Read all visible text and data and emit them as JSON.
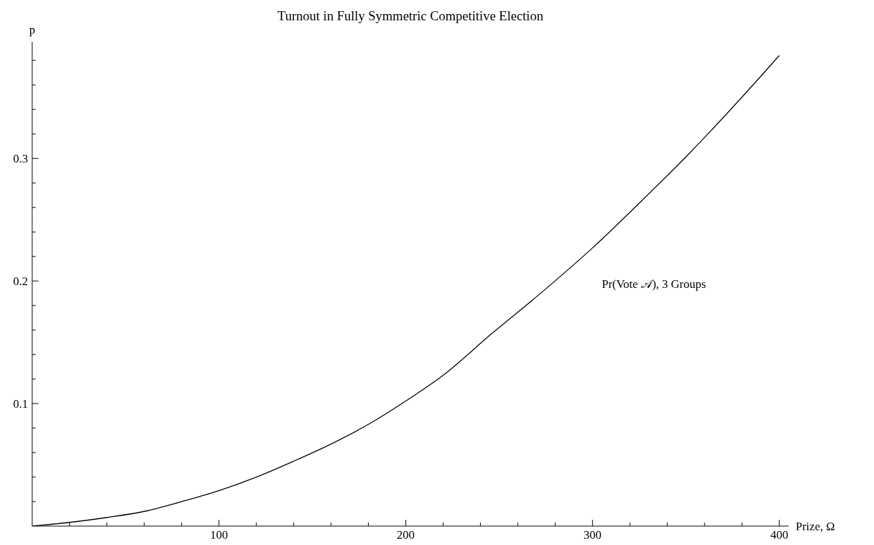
{
  "chart_data": {
    "type": "line",
    "title": "Turnout in Fully Symmetric Competitive Election",
    "xlabel": "Prize, Ω",
    "ylabel": "p",
    "x": [
      0,
      20,
      40,
      60,
      80,
      100,
      120,
      140,
      160,
      180,
      200,
      220,
      246,
      273,
      300,
      326,
      353,
      380,
      400
    ],
    "series": [
      {
        "name": "Pr(Vote 𝒜), 3 Groups",
        "color": "#000000",
        "values": [
          0,
          0.003,
          0.007,
          0.012,
          0.02,
          0.029,
          0.04,
          0.053,
          0.067,
          0.083,
          0.102,
          0.123,
          0.157,
          0.191,
          0.227,
          0.265,
          0.306,
          0.35,
          0.384
        ]
      }
    ],
    "xlim": [
      0,
      405
    ],
    "ylim": [
      0,
      0.395
    ],
    "xticks": [
      {
        "value": 20,
        "label": null
      },
      {
        "value": 40,
        "label": null
      },
      {
        "value": 60,
        "label": null
      },
      {
        "value": 80,
        "label": null
      },
      100,
      {
        "value": 120,
        "label": null
      },
      {
        "value": 140,
        "label": null
      },
      {
        "value": 160,
        "label": null
      },
      {
        "value": 180,
        "label": null
      },
      200,
      {
        "value": 220,
        "label": null
      },
      {
        "value": 240,
        "label": null
      },
      {
        "value": 260,
        "label": null
      },
      {
        "value": 280,
        "label": null
      },
      300,
      {
        "value": 320,
        "label": null
      },
      {
        "value": 340,
        "label": null
      },
      {
        "value": 360,
        "label": null
      },
      {
        "value": 380,
        "label": null
      },
      400
    ],
    "yticks": [
      {
        "value": 0.02,
        "label": null
      },
      {
        "value": 0.04,
        "label": null
      },
      {
        "value": 0.06,
        "label": null
      },
      {
        "value": 0.08,
        "label": null
      },
      0.1,
      {
        "value": 0.12,
        "label": null
      },
      {
        "value": 0.14,
        "label": null
      },
      {
        "value": 0.16,
        "label": null
      },
      {
        "value": 0.18,
        "label": null
      },
      0.2,
      {
        "value": 0.22,
        "label": null
      },
      {
        "value": 0.24,
        "label": null
      },
      {
        "value": 0.26,
        "label": null
      },
      {
        "value": 0.28,
        "label": null
      },
      0.3,
      {
        "value": 0.32,
        "label": null
      },
      {
        "value": 0.34,
        "label": null
      },
      {
        "value": 0.36,
        "label": null
      },
      {
        "value": 0.38,
        "label": null
      }
    ],
    "grid": false,
    "legend": false,
    "marker": "none",
    "line_style": "solid"
  }
}
